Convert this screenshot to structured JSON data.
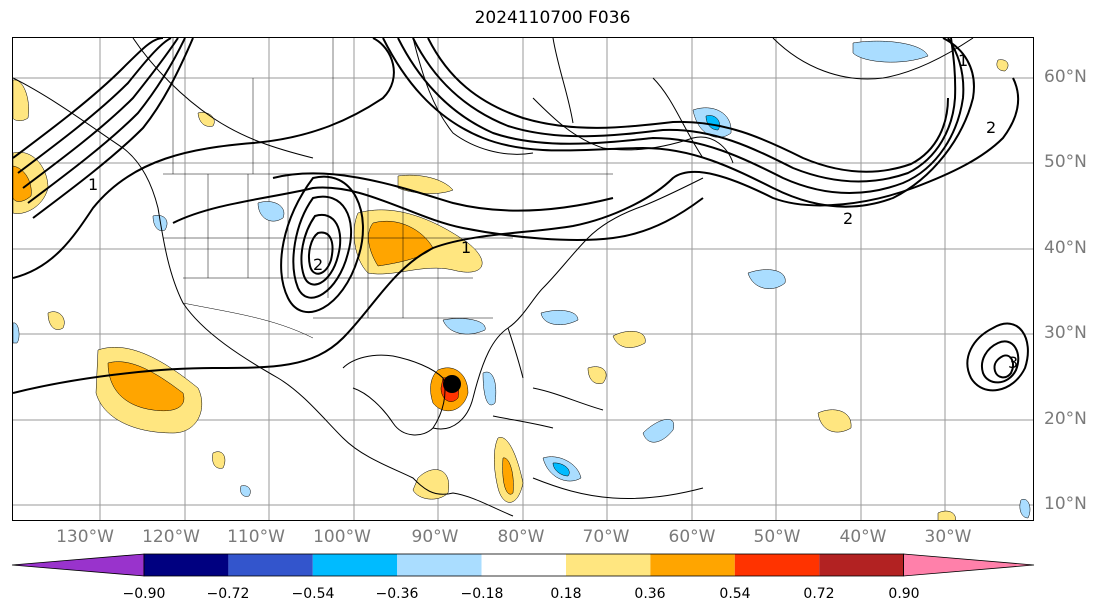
{
  "title": "2024110700 F036",
  "map": {
    "lon_labels": [
      "130°W",
      "120°W",
      "110°W",
      "100°W",
      "90°W",
      "80°W",
      "70°W",
      "60°W",
      "50°W",
      "40°W",
      "30°W"
    ],
    "lat_labels": [
      "60°N",
      "50°N",
      "40°N",
      "30°N",
      "20°N",
      "10°N"
    ],
    "contour_labels": [
      "1",
      "1",
      "2",
      "2",
      "2",
      "3",
      "1"
    ],
    "center_marker": "storm-center"
  },
  "colorbar": {
    "ticks": [
      "−0.90",
      "−0.72",
      "−0.54",
      "−0.36",
      "−0.18",
      "0.18",
      "0.36",
      "0.54",
      "0.72",
      "0.90"
    ],
    "colors": [
      "#9933cc",
      "#000080",
      "#3355cc",
      "#00bbff",
      "#aaddff",
      "#ffffff",
      "#ffe680",
      "#ffa500",
      "#ff3300",
      "#b22222",
      "#ff80aa"
    ]
  }
}
